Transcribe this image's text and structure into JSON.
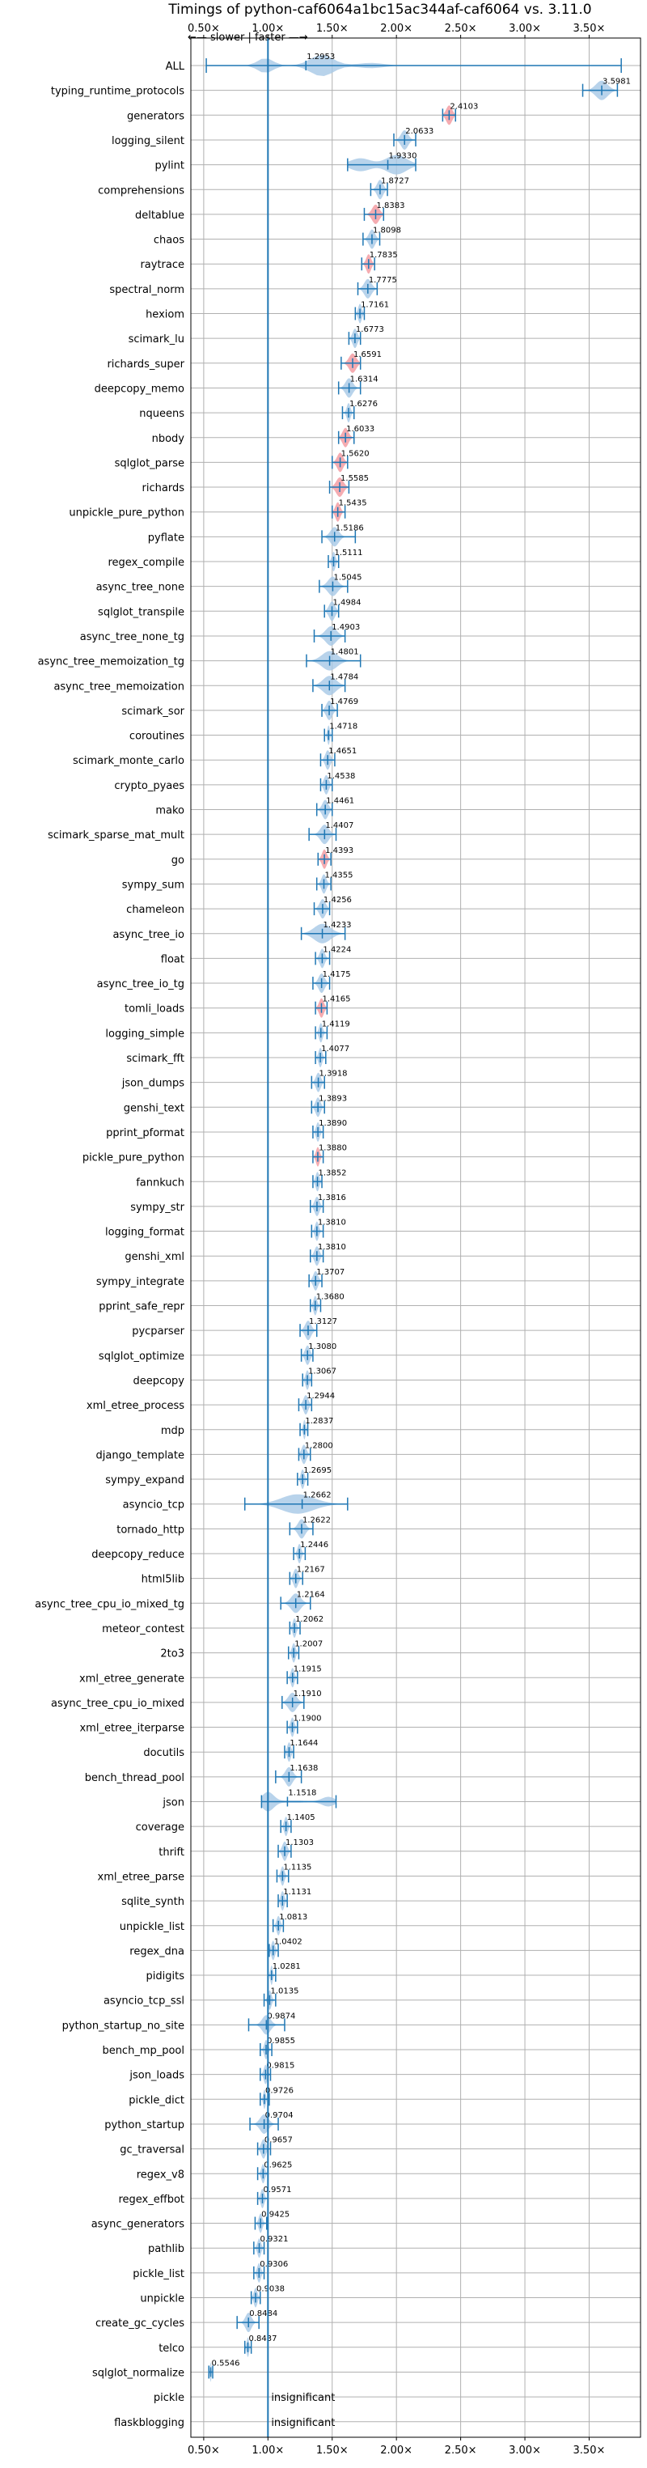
{
  "chart_data": {
    "type": "violin",
    "title": "Timings of python-caf6064a1bc15ac344af-caf6064 vs. 3.11.0",
    "direction_label": "←— slower  |  faster —→",
    "x_ticks": [
      0.5,
      1.0,
      1.5,
      2.0,
      2.5,
      3.0,
      3.5
    ],
    "x_tick_labels": [
      "0.50×",
      "1.00×",
      "1.50×",
      "2.00×",
      "2.50×",
      "3.00×",
      "3.50×"
    ],
    "xlim": [
      0.4,
      3.9
    ],
    "reference_line": 1.0,
    "insignificant_label": "insignificant",
    "colors": {
      "violin": "#1f77b4",
      "violin_fill": "#a6c8e6",
      "highlight": "#f4a3a8",
      "grid": "#b0b0b0"
    },
    "benchmarks": [
      {
        "name": "ALL",
        "value": 1.2953,
        "label": "1.2953",
        "min": 0.52,
        "max": 3.75,
        "spread": 0.5,
        "dist": "all"
      },
      {
        "name": "typing_runtime_protocols",
        "value": 3.5981,
        "label": "3.5981",
        "min": 3.45,
        "max": 3.72,
        "spread": 0.1
      },
      {
        "name": "generators",
        "value": 2.4103,
        "label": "2.4103",
        "min": 2.36,
        "max": 2.46,
        "spread": 0.05,
        "highlight": true
      },
      {
        "name": "logging_silent",
        "value": 2.0633,
        "label": "2.0633",
        "min": 1.98,
        "max": 2.15,
        "spread": 0.06
      },
      {
        "name": "pylint",
        "value": 1.933,
        "label": "1.9330",
        "min": 1.62,
        "max": 2.15,
        "spread": 0.2,
        "dist": "wide"
      },
      {
        "name": "comprehensions",
        "value": 1.8727,
        "label": "1.8727",
        "min": 1.8,
        "max": 1.93,
        "spread": 0.05
      },
      {
        "name": "deltablue",
        "value": 1.8383,
        "label": "1.8383",
        "min": 1.75,
        "max": 1.9,
        "spread": 0.06,
        "highlight": true
      },
      {
        "name": "chaos",
        "value": 1.8098,
        "label": "1.8098",
        "min": 1.74,
        "max": 1.87,
        "spread": 0.05
      },
      {
        "name": "raytrace",
        "value": 1.7835,
        "label": "1.7835",
        "min": 1.73,
        "max": 1.83,
        "spread": 0.04,
        "highlight": true
      },
      {
        "name": "spectral_norm",
        "value": 1.7775,
        "label": "1.7775",
        "min": 1.7,
        "max": 1.85,
        "spread": 0.06
      },
      {
        "name": "hexiom",
        "value": 1.7161,
        "label": "1.7161",
        "min": 1.68,
        "max": 1.75,
        "spread": 0.03
      },
      {
        "name": "scimark_lu",
        "value": 1.6773,
        "label": "1.6773",
        "min": 1.63,
        "max": 1.72,
        "spread": 0.04
      },
      {
        "name": "richards_super",
        "value": 1.6591,
        "label": "1.6591",
        "min": 1.57,
        "max": 1.72,
        "spread": 0.06,
        "highlight": true
      },
      {
        "name": "deepcopy_memo",
        "value": 1.6314,
        "label": "1.6314",
        "min": 1.55,
        "max": 1.72,
        "spread": 0.06
      },
      {
        "name": "nqueens",
        "value": 1.6276,
        "label": "1.6276",
        "min": 1.58,
        "max": 1.67,
        "spread": 0.03
      },
      {
        "name": "nbody",
        "value": 1.6033,
        "label": "1.6033",
        "min": 1.55,
        "max": 1.67,
        "spread": 0.05,
        "highlight": true
      },
      {
        "name": "sqlglot_parse",
        "value": 1.562,
        "label": "1.5620",
        "min": 1.5,
        "max": 1.62,
        "spread": 0.05,
        "highlight": true
      },
      {
        "name": "richards",
        "value": 1.5585,
        "label": "1.5585",
        "min": 1.48,
        "max": 1.63,
        "spread": 0.06,
        "highlight": true
      },
      {
        "name": "unpickle_pure_python",
        "value": 1.5435,
        "label": "1.5435",
        "min": 1.5,
        "max": 1.6,
        "spread": 0.04,
        "highlight": true
      },
      {
        "name": "pyflate",
        "value": 1.5186,
        "label": "1.5186",
        "min": 1.42,
        "max": 1.68,
        "spread": 0.07
      },
      {
        "name": "regex_compile",
        "value": 1.5111,
        "label": "1.5111",
        "min": 1.47,
        "max": 1.55,
        "spread": 0.03
      },
      {
        "name": "async_tree_none",
        "value": 1.5045,
        "label": "1.5045",
        "min": 1.4,
        "max": 1.62,
        "spread": 0.08
      },
      {
        "name": "sqlglot_transpile",
        "value": 1.4984,
        "label": "1.4984",
        "min": 1.44,
        "max": 1.55,
        "spread": 0.05
      },
      {
        "name": "async_tree_none_tg",
        "value": 1.4903,
        "label": "1.4903",
        "min": 1.36,
        "max": 1.6,
        "spread": 0.09
      },
      {
        "name": "async_tree_memoization_tg",
        "value": 1.4801,
        "label": "1.4801",
        "min": 1.3,
        "max": 1.72,
        "spread": 0.13
      },
      {
        "name": "async_tree_memoization",
        "value": 1.4784,
        "label": "1.4784",
        "min": 1.35,
        "max": 1.6,
        "spread": 0.11
      },
      {
        "name": "scimark_sor",
        "value": 1.4769,
        "label": "1.4769",
        "min": 1.42,
        "max": 1.54,
        "spread": 0.05
      },
      {
        "name": "coroutines",
        "value": 1.4718,
        "label": "1.4718",
        "min": 1.44,
        "max": 1.5,
        "spread": 0.02
      },
      {
        "name": "scimark_monte_carlo",
        "value": 1.4651,
        "label": "1.4651",
        "min": 1.41,
        "max": 1.52,
        "spread": 0.04
      },
      {
        "name": "crypto_pyaes",
        "value": 1.4538,
        "label": "1.4538",
        "min": 1.41,
        "max": 1.5,
        "spread": 0.04
      },
      {
        "name": "mako",
        "value": 1.4461,
        "label": "1.4461",
        "min": 1.38,
        "max": 1.5,
        "spread": 0.05
      },
      {
        "name": "scimark_sparse_mat_mult",
        "value": 1.4407,
        "label": "1.4407",
        "min": 1.32,
        "max": 1.53,
        "spread": 0.07
      },
      {
        "name": "go",
        "value": 1.4393,
        "label": "1.4393",
        "min": 1.39,
        "max": 1.49,
        "spread": 0.04,
        "highlight": true
      },
      {
        "name": "sympy_sum",
        "value": 1.4355,
        "label": "1.4355",
        "min": 1.38,
        "max": 1.49,
        "spread": 0.04
      },
      {
        "name": "chameleon",
        "value": 1.4256,
        "label": "1.4256",
        "min": 1.36,
        "max": 1.48,
        "spread": 0.05
      },
      {
        "name": "async_tree_io",
        "value": 1.4233,
        "label": "1.4233",
        "min": 1.26,
        "max": 1.6,
        "spread": 0.14
      },
      {
        "name": "float",
        "value": 1.4224,
        "label": "1.4224",
        "min": 1.37,
        "max": 1.48,
        "spread": 0.04
      },
      {
        "name": "async_tree_io_tg",
        "value": 1.4175,
        "label": "1.4175",
        "min": 1.35,
        "max": 1.48,
        "spread": 0.05
      },
      {
        "name": "tomli_loads",
        "value": 1.4165,
        "label": "1.4165",
        "min": 1.37,
        "max": 1.46,
        "spread": 0.04,
        "highlight": true
      },
      {
        "name": "logging_simple",
        "value": 1.4119,
        "label": "1.4119",
        "min": 1.37,
        "max": 1.46,
        "spread": 0.03
      },
      {
        "name": "scimark_fft",
        "value": 1.4077,
        "label": "1.4077",
        "min": 1.37,
        "max": 1.45,
        "spread": 0.03
      },
      {
        "name": "json_dumps",
        "value": 1.3918,
        "label": "1.3918",
        "min": 1.34,
        "max": 1.44,
        "spread": 0.04
      },
      {
        "name": "genshi_text",
        "value": 1.3893,
        "label": "1.3893",
        "min": 1.34,
        "max": 1.44,
        "spread": 0.04
      },
      {
        "name": "pprint_pformat",
        "value": 1.389,
        "label": "1.3890",
        "min": 1.35,
        "max": 1.43,
        "spread": 0.03
      },
      {
        "name": "pickle_pure_python",
        "value": 1.388,
        "label": "1.3880",
        "min": 1.35,
        "max": 1.43,
        "spread": 0.03,
        "highlight": true
      },
      {
        "name": "fannkuch",
        "value": 1.3852,
        "label": "1.3852",
        "min": 1.35,
        "max": 1.42,
        "spread": 0.03
      },
      {
        "name": "sympy_str",
        "value": 1.3816,
        "label": "1.3816",
        "min": 1.33,
        "max": 1.43,
        "spread": 0.04
      },
      {
        "name": "logging_format",
        "value": 1.381,
        "label": "1.3810",
        "min": 1.34,
        "max": 1.43,
        "spread": 0.03
      },
      {
        "name": "genshi_xml",
        "value": 1.381,
        "label": "1.3810",
        "min": 1.33,
        "max": 1.43,
        "spread": 0.04
      },
      {
        "name": "sympy_integrate",
        "value": 1.3707,
        "label": "1.3707",
        "min": 1.32,
        "max": 1.42,
        "spread": 0.04
      },
      {
        "name": "pprint_safe_repr",
        "value": 1.368,
        "label": "1.3680",
        "min": 1.33,
        "max": 1.41,
        "spread": 0.03
      },
      {
        "name": "pycparser",
        "value": 1.3127,
        "label": "1.3127",
        "min": 1.25,
        "max": 1.38,
        "spread": 0.05
      },
      {
        "name": "sqlglot_optimize",
        "value": 1.308,
        "label": "1.3080",
        "min": 1.26,
        "max": 1.35,
        "spread": 0.04
      },
      {
        "name": "deepcopy",
        "value": 1.3067,
        "label": "1.3067",
        "min": 1.27,
        "max": 1.34,
        "spread": 0.03
      },
      {
        "name": "xml_etree_process",
        "value": 1.2944,
        "label": "1.2944",
        "min": 1.24,
        "max": 1.34,
        "spread": 0.04
      },
      {
        "name": "mdp",
        "value": 1.2837,
        "label": "1.2837",
        "min": 1.25,
        "max": 1.31,
        "spread": 0.02
      },
      {
        "name": "django_template",
        "value": 1.28,
        "label": "1.2800",
        "min": 1.24,
        "max": 1.33,
        "spread": 0.04
      },
      {
        "name": "sympy_expand",
        "value": 1.2695,
        "label": "1.2695",
        "min": 1.23,
        "max": 1.31,
        "spread": 0.03
      },
      {
        "name": "asyncio_tcp",
        "value": 1.2662,
        "label": "1.2662",
        "min": 0.82,
        "max": 1.62,
        "spread": 0.25,
        "dist": "asyncio"
      },
      {
        "name": "tornado_http",
        "value": 1.2622,
        "label": "1.2622",
        "min": 1.17,
        "max": 1.35,
        "spread": 0.06
      },
      {
        "name": "deepcopy_reduce",
        "value": 1.2446,
        "label": "1.2446",
        "min": 1.2,
        "max": 1.29,
        "spread": 0.03
      },
      {
        "name": "html5lib",
        "value": 1.2167,
        "label": "1.2167",
        "min": 1.17,
        "max": 1.27,
        "spread": 0.04
      },
      {
        "name": "async_tree_cpu_io_mixed_tg",
        "value": 1.2164,
        "label": "1.2164",
        "min": 1.1,
        "max": 1.33,
        "spread": 0.08
      },
      {
        "name": "meteor_contest",
        "value": 1.2062,
        "label": "1.2062",
        "min": 1.17,
        "max": 1.25,
        "spread": 0.03
      },
      {
        "name": "2to3",
        "value": 1.2007,
        "label": "1.2007",
        "min": 1.16,
        "max": 1.24,
        "spread": 0.03
      },
      {
        "name": "xml_etree_generate",
        "value": 1.1915,
        "label": "1.1915",
        "min": 1.15,
        "max": 1.23,
        "spread": 0.03
      },
      {
        "name": "async_tree_cpu_io_mixed",
        "value": 1.191,
        "label": "1.1910",
        "min": 1.11,
        "max": 1.28,
        "spread": 0.07
      },
      {
        "name": "xml_etree_iterparse",
        "value": 1.19,
        "label": "1.1900",
        "min": 1.15,
        "max": 1.23,
        "spread": 0.03
      },
      {
        "name": "docutils",
        "value": 1.1644,
        "label": "1.1644",
        "min": 1.13,
        "max": 1.2,
        "spread": 0.03
      },
      {
        "name": "bench_thread_pool",
        "value": 1.1638,
        "label": "1.1638",
        "min": 1.06,
        "max": 1.26,
        "spread": 0.06
      },
      {
        "name": "json",
        "value": 1.1518,
        "label": "1.1518",
        "min": 0.95,
        "max": 1.53,
        "spread": 0.2,
        "dist": "json"
      },
      {
        "name": "coverage",
        "value": 1.1405,
        "label": "1.1405",
        "min": 1.1,
        "max": 1.18,
        "spread": 0.03
      },
      {
        "name": "thrift",
        "value": 1.1303,
        "label": "1.1303",
        "min": 1.08,
        "max": 1.18,
        "spread": 0.04
      },
      {
        "name": "xml_etree_parse",
        "value": 1.1135,
        "label": "1.1135",
        "min": 1.07,
        "max": 1.16,
        "spread": 0.03
      },
      {
        "name": "sqlite_synth",
        "value": 1.1131,
        "label": "1.1131",
        "min": 1.08,
        "max": 1.15,
        "spread": 0.03
      },
      {
        "name": "unpickle_list",
        "value": 1.0813,
        "label": "1.0813",
        "min": 1.04,
        "max": 1.12,
        "spread": 0.03
      },
      {
        "name": "regex_dna",
        "value": 1.0402,
        "label": "1.0402",
        "min": 1.01,
        "max": 1.08,
        "spread": 0.03
      },
      {
        "name": "pidigits",
        "value": 1.0281,
        "label": "1.0281",
        "min": 1.0,
        "max": 1.06,
        "spread": 0.02
      },
      {
        "name": "asyncio_tcp_ssl",
        "value": 1.0135,
        "label": "1.0135",
        "min": 0.97,
        "max": 1.06,
        "spread": 0.03
      },
      {
        "name": "python_startup_no_site",
        "value": 0.9874,
        "label": "0.9874",
        "min": 0.85,
        "max": 1.13,
        "spread": 0.07
      },
      {
        "name": "bench_mp_pool",
        "value": 0.9855,
        "label": "0.9855",
        "min": 0.94,
        "max": 1.03,
        "spread": 0.03
      },
      {
        "name": "json_loads",
        "value": 0.9815,
        "label": "0.9815",
        "min": 0.94,
        "max": 1.02,
        "spread": 0.03
      },
      {
        "name": "pickle_dict",
        "value": 0.9726,
        "label": "0.9726",
        "min": 0.94,
        "max": 1.01,
        "spread": 0.02
      },
      {
        "name": "python_startup",
        "value": 0.9704,
        "label": "0.9704",
        "min": 0.86,
        "max": 1.08,
        "spread": 0.07
      },
      {
        "name": "gc_traversal",
        "value": 0.9657,
        "label": "0.9657",
        "min": 0.92,
        "max": 1.02,
        "spread": 0.04
      },
      {
        "name": "regex_v8",
        "value": 0.9625,
        "label": "0.9625",
        "min": 0.92,
        "max": 1.0,
        "spread": 0.03
      },
      {
        "name": "regex_effbot",
        "value": 0.9571,
        "label": "0.9571",
        "min": 0.92,
        "max": 1.0,
        "spread": 0.03
      },
      {
        "name": "async_generators",
        "value": 0.9425,
        "label": "0.9425",
        "min": 0.9,
        "max": 0.99,
        "spread": 0.03
      },
      {
        "name": "pathlib",
        "value": 0.9321,
        "label": "0.9321",
        "min": 0.89,
        "max": 0.97,
        "spread": 0.03
      },
      {
        "name": "pickle_list",
        "value": 0.9306,
        "label": "0.9306",
        "min": 0.89,
        "max": 0.97,
        "spread": 0.03
      },
      {
        "name": "unpickle",
        "value": 0.9038,
        "label": "0.9038",
        "min": 0.87,
        "max": 0.94,
        "spread": 0.03
      },
      {
        "name": "create_gc_cycles",
        "value": 0.8484,
        "label": "0.8484",
        "min": 0.76,
        "max": 0.93,
        "spread": 0.05
      },
      {
        "name": "telco",
        "value": 0.8437,
        "label": "0.8437",
        "min": 0.82,
        "max": 0.87,
        "spread": 0.02
      },
      {
        "name": "sqlglot_normalize",
        "value": 0.5546,
        "label": "0.5546",
        "min": 0.54,
        "max": 0.57,
        "spread": 0.01
      },
      {
        "name": "pickle",
        "value": null,
        "insignificant": true
      },
      {
        "name": "flaskblogging",
        "value": null,
        "insignificant": true
      }
    ]
  }
}
